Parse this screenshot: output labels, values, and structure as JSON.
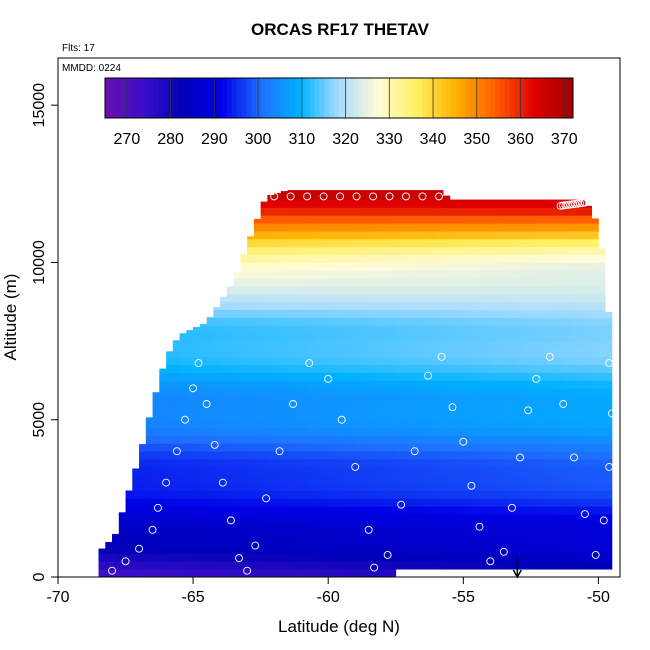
{
  "chart_data": {
    "type": "heatmap",
    "title": "ORCAS RF17 THETAV",
    "flights_label": "Flts: 17",
    "date_label": "MMDD: 0224",
    "xlabel": "Latitude (deg N)",
    "ylabel": "Altitude (m)",
    "xlim": [
      -70,
      -49.2
    ],
    "ylim": [
      0,
      16500
    ],
    "x_ticks": [
      -70,
      -65,
      -60,
      -55,
      -50
    ],
    "x_tick_labels": [
      "-70",
      "-65",
      "-60",
      "-55",
      "-50"
    ],
    "y_ticks": [
      0,
      5000,
      10000,
      15000
    ],
    "y_tick_labels": [
      "0",
      "5000",
      "10000",
      "15000"
    ],
    "colorbar": {
      "range": [
        265,
        372
      ],
      "ticks": [
        270,
        280,
        290,
        300,
        310,
        320,
        330,
        340,
        350,
        360,
        370
      ],
      "tick_labels": [
        "270",
        "280",
        "290",
        "300",
        "310",
        "320",
        "330",
        "340",
        "350",
        "360",
        "370"
      ],
      "colors": [
        "#6a0fb0",
        "#3b0fc8",
        "#0000b8",
        "#0000e8",
        "#1f6fff",
        "#00b2ff",
        "#a8dcff",
        "#fffbd8",
        "#fff060",
        "#ffb000",
        "#ff6000",
        "#e00000",
        "#a40000"
      ]
    },
    "theta_profile_south": [
      [
        0,
        272
      ],
      [
        500,
        276
      ],
      [
        1000,
        283
      ],
      [
        2000,
        289
      ],
      [
        3000,
        293
      ],
      [
        4000,
        298
      ],
      [
        5000,
        302
      ],
      [
        6000,
        306
      ],
      [
        7000,
        309
      ],
      [
        8000,
        313
      ],
      [
        9000,
        320
      ],
      [
        9800,
        330
      ],
      [
        10500,
        340
      ],
      [
        11200,
        350
      ],
      [
        11700,
        360
      ],
      [
        12200,
        370
      ]
    ],
    "theta_profile_north": [
      [
        0,
        279
      ],
      [
        500,
        283
      ],
      [
        1000,
        288
      ],
      [
        2000,
        293
      ],
      [
        3000,
        298
      ],
      [
        4000,
        303
      ],
      [
        5000,
        307
      ],
      [
        6000,
        311
      ],
      [
        7000,
        315
      ],
      [
        8000,
        318
      ],
      [
        9000,
        321
      ],
      [
        9800,
        325
      ],
      [
        10500,
        333
      ],
      [
        11200,
        348
      ],
      [
        11700,
        362
      ],
      [
        12200,
        368
      ]
    ],
    "coverage_top": [
      [
        -68.5,
        800
      ],
      [
        -67.9,
        1300
      ],
      [
        -67.5,
        2400
      ],
      [
        -67.0,
        3800
      ],
      [
        -66.5,
        5500
      ],
      [
        -66.0,
        7000
      ],
      [
        -65.5,
        7700
      ],
      [
        -64.5,
        8100
      ],
      [
        -63.5,
        9400
      ],
      [
        -62.8,
        11000
      ],
      [
        -62.3,
        12100
      ],
      [
        -61.5,
        12300
      ],
      [
        -55.8,
        12300
      ],
      [
        -55.5,
        12000
      ],
      [
        -50.5,
        12000
      ],
      [
        -50.0,
        11200
      ],
      [
        -49.8,
        10000
      ],
      [
        -49.6,
        8200
      ],
      [
        -49.5,
        7000
      ]
    ],
    "coverage_bottom": [
      [
        -68.5,
        0
      ],
      [
        -57.5,
        0
      ],
      [
        -57.5,
        250
      ],
      [
        -49.5,
        250
      ]
    ],
    "marker": {
      "latitude": -53,
      "from_altitude": 650,
      "to_altitude": 0
    },
    "flight_points": [
      [
        -68.0,
        200
      ],
      [
        -67.5,
        500
      ],
      [
        -67.0,
        900
      ],
      [
        -66.5,
        1500
      ],
      [
        -66.3,
        2200
      ],
      [
        -66.0,
        3000
      ],
      [
        -65.6,
        4000
      ],
      [
        -65.3,
        5000
      ],
      [
        -65.0,
        6000
      ],
      [
        -64.8,
        6800
      ],
      [
        -64.5,
        5500
      ],
      [
        -64.2,
        4200
      ],
      [
        -63.9,
        3000
      ],
      [
        -63.6,
        1800
      ],
      [
        -63.3,
        600
      ],
      [
        -63.0,
        200
      ],
      [
        -62.7,
        1000
      ],
      [
        -62.3,
        2500
      ],
      [
        -61.8,
        4000
      ],
      [
        -61.3,
        5500
      ],
      [
        -60.7,
        6800
      ],
      [
        -60.0,
        6300
      ],
      [
        -59.5,
        5000
      ],
      [
        -59.0,
        3500
      ],
      [
        -58.5,
        1500
      ],
      [
        -58.3,
        300
      ],
      [
        -57.8,
        700
      ],
      [
        -57.3,
        2300
      ],
      [
        -56.8,
        4000
      ],
      [
        -56.3,
        6400
      ],
      [
        -55.8,
        7000
      ],
      [
        -55.4,
        5400
      ],
      [
        -55.0,
        4300
      ],
      [
        -54.7,
        2900
      ],
      [
        -54.4,
        1600
      ],
      [
        -54.0,
        500
      ],
      [
        -53.5,
        800
      ],
      [
        -53.2,
        2200
      ],
      [
        -52.9,
        3800
      ],
      [
        -52.6,
        5300
      ],
      [
        -52.3,
        6300
      ],
      [
        -51.8,
        7000
      ],
      [
        -51.3,
        5500
      ],
      [
        -50.9,
        3800
      ],
      [
        -50.5,
        2000
      ],
      [
        -50.1,
        700
      ],
      [
        -49.8,
        1800
      ],
      [
        -49.6,
        3500
      ],
      [
        -49.5,
        5200
      ],
      [
        -49.6,
        6800
      ]
    ],
    "flight_top_leg": [
      [
        -62.0,
        12100
      ],
      [
        -55.9,
        12100
      ]
    ],
    "flight_top_leg_2": [
      [
        -51.4,
        11800
      ],
      [
        -50.5,
        11900
      ]
    ]
  }
}
